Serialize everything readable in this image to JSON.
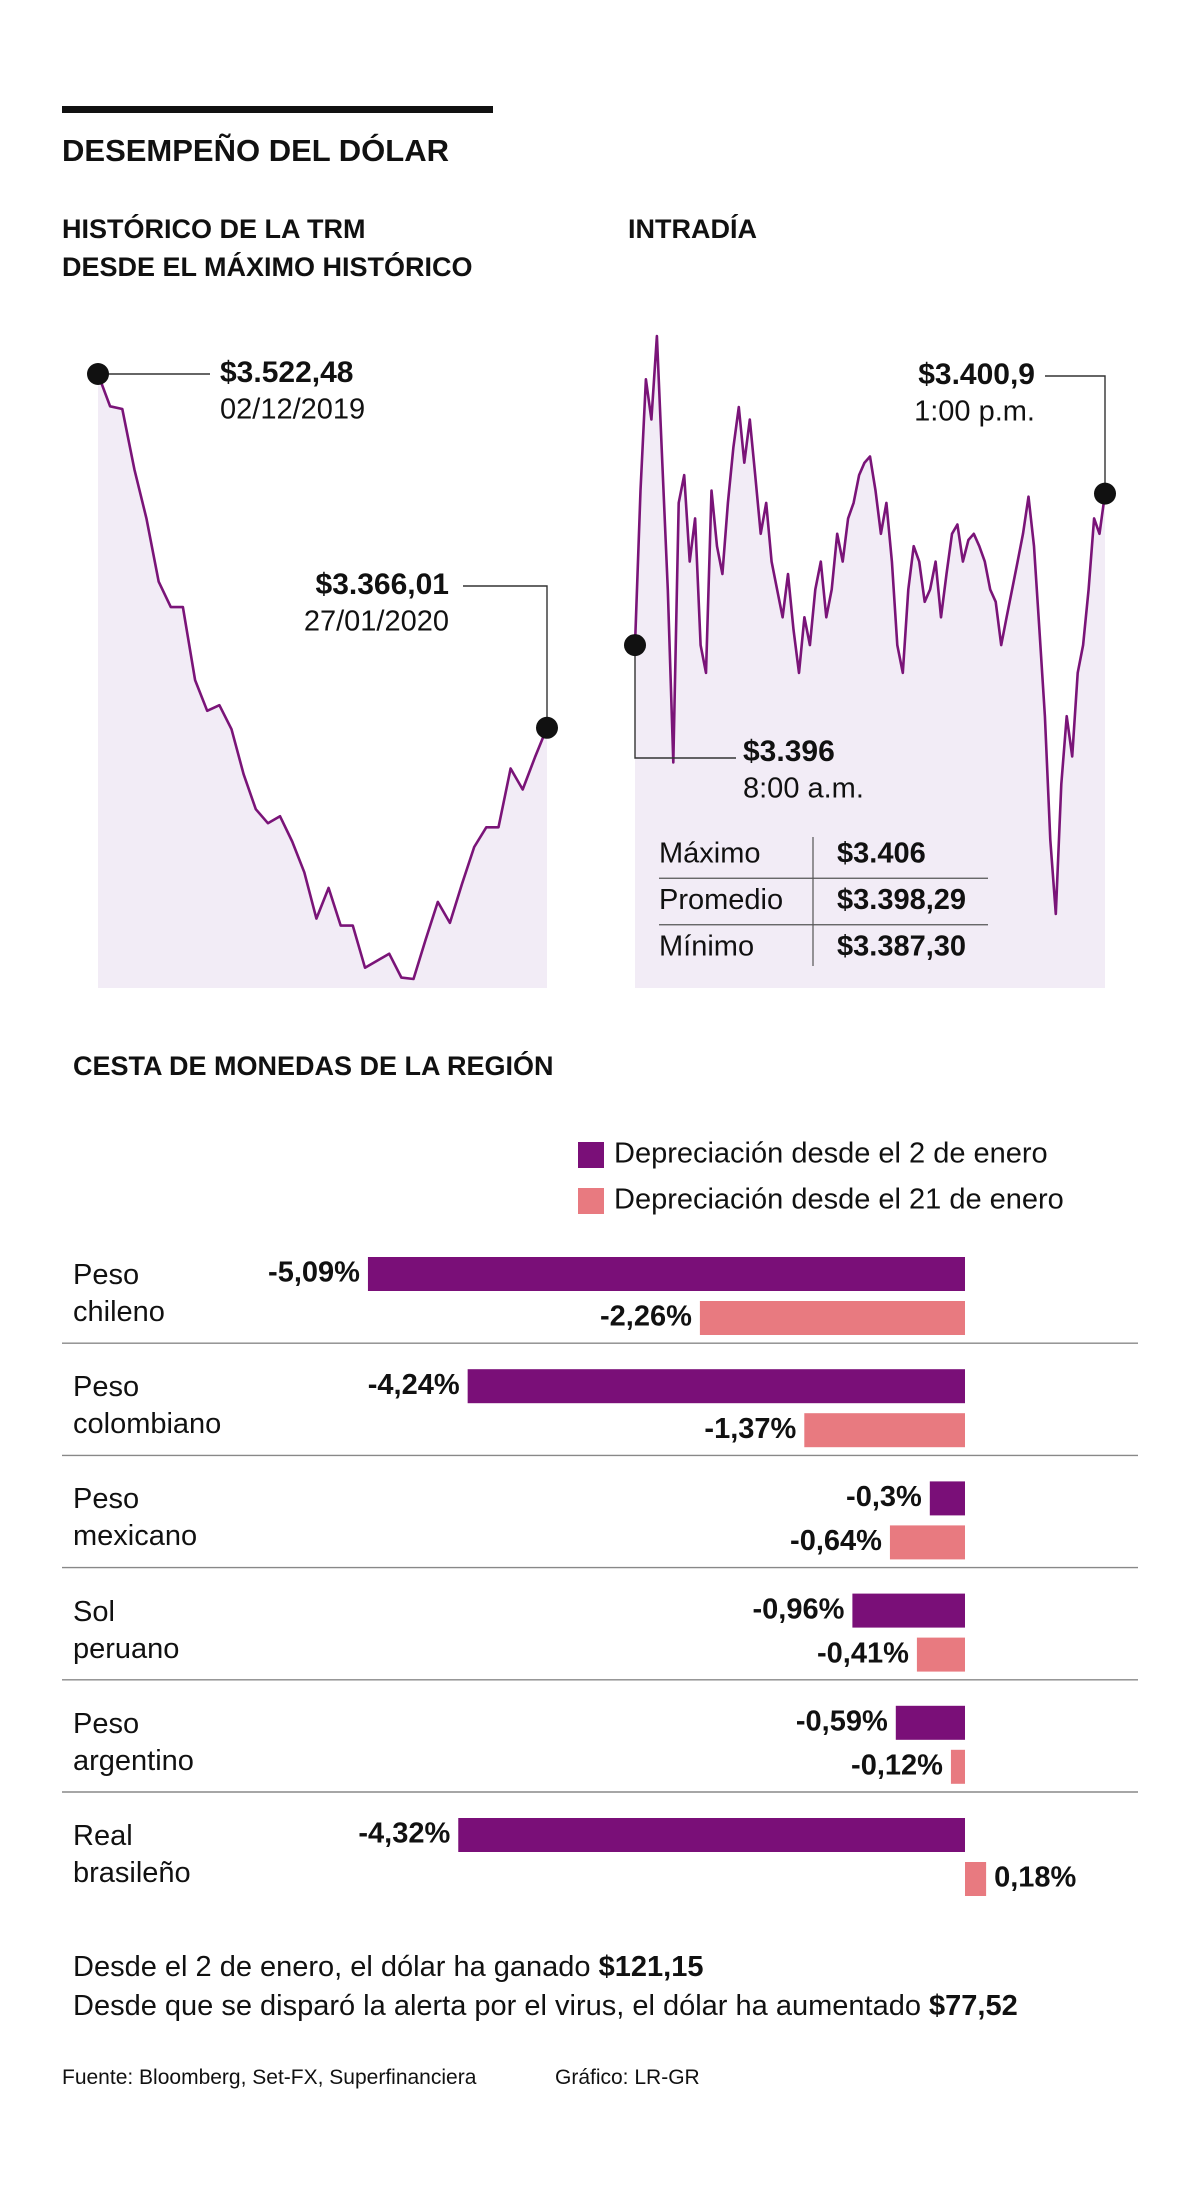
{
  "title": "DESEMPEÑO DEL DÓLAR",
  "chart_data": [
    {
      "type": "line",
      "title": [
        "HISTÓRICO DE LA TRM",
        "DESDE EL MÁXIMO HISTÓRICO"
      ],
      "color": "#7a1478",
      "area_color": "#f2ecf6",
      "categories": [
        "02/12/2019",
        null,
        null,
        null,
        null,
        null,
        null,
        null,
        null,
        null,
        null,
        null,
        null,
        null,
        null,
        null,
        null,
        null,
        null,
        null,
        null,
        null,
        null,
        null,
        null,
        null,
        null,
        null,
        null,
        null,
        null,
        null,
        null,
        null,
        null,
        null,
        null,
        "27/01/2020"
      ],
      "values": [
        3522.48,
        3508.2,
        3507.0,
        3480.3,
        3458.5,
        3430.6,
        3419.4,
        3419.4,
        3387.1,
        3373.5,
        3376.0,
        3365.4,
        3345.5,
        3330.0,
        3323.8,
        3326.9,
        3315.7,
        3302.1,
        3281.6,
        3295.2,
        3278.5,
        3278.5,
        3259.9,
        3263.0,
        3266.1,
        3255.5,
        3254.9,
        3272.3,
        3289.0,
        3279.7,
        3297.1,
        3313.3,
        3322.0,
        3322.0,
        3348.0,
        3338.7,
        3352.9,
        3366.01
      ],
      "value_labels": [
        "$3.522,48",
        null,
        null,
        null,
        null,
        null,
        null,
        null,
        null,
        null,
        null,
        null,
        null,
        null,
        null,
        null,
        null,
        null,
        null,
        null,
        null,
        null,
        null,
        null,
        null,
        null,
        null,
        null,
        null,
        null,
        null,
        null,
        null,
        null,
        null,
        null,
        null,
        "$3.366,01"
      ]
    },
    {
      "type": "line",
      "title": [
        "INTRADÍA"
      ],
      "color": "#7a1478",
      "area_color": "#f2ecf6",
      "categories": [
        "8:00 a.m.",
        null,
        null,
        null,
        null,
        null,
        null,
        null,
        null,
        null,
        null,
        null,
        null,
        null,
        null,
        null,
        null,
        null,
        null,
        null,
        null,
        null,
        null,
        null,
        null,
        null,
        null,
        null,
        null,
        null,
        null,
        null,
        null,
        null,
        null,
        null,
        null,
        null,
        null,
        null,
        null,
        null,
        null,
        null,
        null,
        null,
        null,
        null,
        null,
        null,
        null,
        null,
        null,
        null,
        null,
        null,
        null,
        null,
        null,
        null,
        null,
        null,
        null,
        null,
        null,
        null,
        null,
        null,
        null,
        null,
        null,
        null,
        null,
        null,
        null,
        null,
        null,
        null,
        null,
        null,
        null,
        null,
        null,
        null,
        null,
        null,
        "1:00 p.m."
      ],
      "values": [
        3396,
        3401.0,
        3404.6,
        3403.3,
        3406,
        3401.9,
        3397.8,
        3392.2,
        3400.6,
        3401.5,
        3398.7,
        3400.1,
        3396.0,
        3395.1,
        3401.0,
        3399.2,
        3398.3,
        3400.6,
        3402.4,
        3403.7,
        3401.9,
        3403.3,
        3401.5,
        3399.6,
        3400.6,
        3398.7,
        3397.8,
        3396.9,
        3398.3,
        3396.5,
        3395.1,
        3396.9,
        3396.0,
        3397.8,
        3398.7,
        3396.9,
        3397.8,
        3399.6,
        3398.7,
        3400.1,
        3400.6,
        3401.5,
        3401.9,
        3402.1,
        3401.0,
        3399.6,
        3400.6,
        3398.7,
        3396.0,
        3395.1,
        3397.8,
        3399.2,
        3398.7,
        3397.4,
        3397.8,
        3398.7,
        3396.9,
        3398.3,
        3399.6,
        3399.9,
        3398.7,
        3399.4,
        3399.6,
        3399.2,
        3398.7,
        3397.8,
        3397.4,
        3396.0,
        3396.9,
        3397.8,
        3398.7,
        3399.6,
        3400.8,
        3399.2,
        3396.5,
        3393.7,
        3389.7,
        3387.3,
        3391.5,
        3393.7,
        3392.4,
        3395.1,
        3396.0,
        3397.8,
        3400.1,
        3399.6,
        3400.9
      ],
      "value_labels": [
        "$3.396",
        null,
        null,
        null,
        null,
        null,
        null,
        null,
        null,
        null,
        null,
        null,
        null,
        null,
        null,
        null,
        null,
        null,
        null,
        null,
        null,
        null,
        null,
        null,
        null,
        null,
        null,
        null,
        null,
        null,
        null,
        null,
        null,
        null,
        null,
        null,
        null,
        null,
        null,
        null,
        null,
        null,
        null,
        null,
        null,
        null,
        null,
        null,
        null,
        null,
        null,
        null,
        null,
        null,
        null,
        null,
        null,
        null,
        null,
        null,
        null,
        null,
        null,
        null,
        null,
        null,
        null,
        null,
        null,
        null,
        null,
        null,
        null,
        null,
        null,
        null,
        null,
        null,
        null,
        null,
        null,
        null,
        null,
        null,
        null,
        null,
        "$3.400,9"
      ],
      "table": {
        "rows": [
          [
            "Máximo",
            "$3.406"
          ],
          [
            "Promedio",
            "$3.398,29"
          ],
          [
            "Mínimo",
            "$3.387,30"
          ]
        ]
      }
    },
    {
      "type": "bar",
      "orientation": "horizontal",
      "title": "CESTA DE MONEDAS DE LA REGIÓN",
      "categories": [
        "Peso chileno",
        "Peso colombiano",
        "Peso mexicano",
        "Sol peruano",
        "Peso argentino",
        "Real brasileño"
      ],
      "series": [
        {
          "name": "Depreciación desde el 2 de enero",
          "color": "#7a0f78",
          "values": [
            -5.09,
            -4.24,
            -0.3,
            -0.96,
            -0.59,
            -4.32
          ],
          "value_labels": [
            "-5,09%",
            "-4,24%",
            "-0,3%",
            "-0,96%",
            "-0,59%",
            "-4,32%"
          ]
        },
        {
          "name": "Depreciación desde el 21 de enero",
          "color": "#e87a80",
          "values": [
            -2.26,
            -1.37,
            -0.64,
            -0.41,
            -0.12,
            0.18
          ],
          "value_labels": [
            "-2,26%",
            "-1,37%",
            "-0,64%",
            "-0,41%",
            "-0,12%",
            "0,18%"
          ]
        }
      ]
    }
  ],
  "notes": [
    {
      "text": "Desde el 2 de enero, el dólar ha ganado",
      "amount": "$121,15"
    },
    {
      "text": "Desde que se disparó la alerta por el virus, el dólar ha aumentado",
      "amount": "$77,52"
    }
  ],
  "footer": {
    "source": "Fuente: Bloomberg, Set-FX, Superfinanciera",
    "credit": "Gráfico: LR-GR"
  }
}
